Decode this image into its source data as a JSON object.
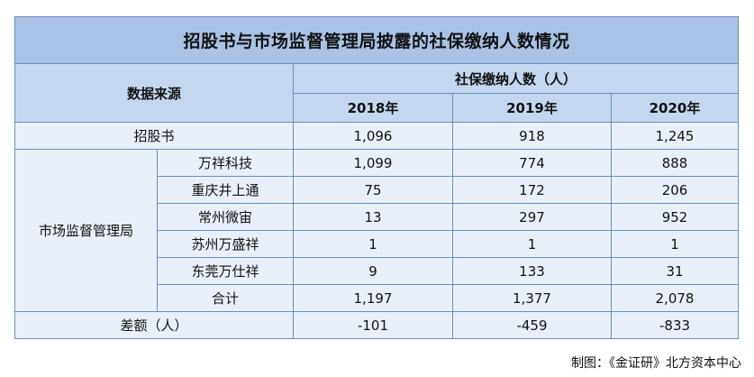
{
  "title": "招股书与市场监督管理局披露的社保缴纳人数情况",
  "header": {
    "source_label": "数据来源",
    "group_label": "社保缴纳人数（人）",
    "years": [
      "2018年",
      "2019年",
      "2020年"
    ]
  },
  "rows": {
    "prospectus": {
      "label": "招股书",
      "values": [
        "1,096",
        "918",
        "1,245"
      ]
    },
    "regulator_label": "市场监督管理局",
    "regulator": [
      {
        "label": "万祥科技",
        "values": [
          "1,099",
          "774",
          "888"
        ]
      },
      {
        "label": "重庆井上通",
        "values": [
          "75",
          "172",
          "206"
        ]
      },
      {
        "label": "常州微宙",
        "values": [
          "13",
          "297",
          "952"
        ]
      },
      {
        "label": "苏州万盛祥",
        "values": [
          "1",
          "1",
          "1"
        ]
      },
      {
        "label": "东莞万仕祥",
        "values": [
          "9",
          "133",
          "31"
        ]
      },
      {
        "label": "合计",
        "values": [
          "1,197",
          "1,377",
          "2,078"
        ]
      }
    ],
    "difference": {
      "label": "差额（人）",
      "values": [
        "-101",
        "-459",
        "-833"
      ]
    }
  },
  "caption": "制图：《金证研》北方资本中心",
  "colors": {
    "title_bg": "#a9c2e5",
    "header_bg": "#c5d7ee",
    "body_bg": "#e9f0f9",
    "border": "#6b8fbf"
  }
}
